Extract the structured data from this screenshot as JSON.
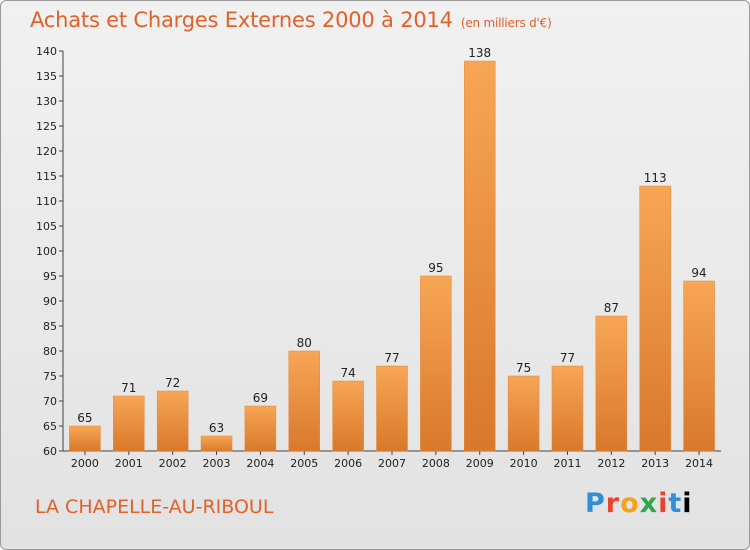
{
  "title": "Achats et Charges Externes 2000 à 2014",
  "subtitle": "(en milliers d'€)",
  "commune": "LA CHAPELLE-AU-RIBOUL",
  "logo": [
    "P",
    "r",
    "o",
    "x",
    "i",
    "t",
    "i"
  ],
  "colors": {
    "title": "#e0622a",
    "bar_light": "#f7a656",
    "bar_dark": "#d9782b"
  },
  "chart_data": {
    "type": "bar",
    "title": "Achats et Charges Externes 2000 à 2014",
    "xlabel": "",
    "ylabel": "",
    "ylim": [
      60,
      140
    ],
    "yticks": [
      60,
      65,
      70,
      75,
      80,
      85,
      90,
      95,
      100,
      105,
      110,
      115,
      120,
      125,
      130,
      135,
      140
    ],
    "grid": false,
    "categories": [
      "2000",
      "2001",
      "2002",
      "2003",
      "2004",
      "2005",
      "2006",
      "2007",
      "2008",
      "2009",
      "2010",
      "2011",
      "2012",
      "2013",
      "2014"
    ],
    "values": [
      65,
      71,
      72,
      63,
      69,
      80,
      74,
      77,
      95,
      138,
      75,
      77,
      87,
      113,
      94
    ]
  }
}
